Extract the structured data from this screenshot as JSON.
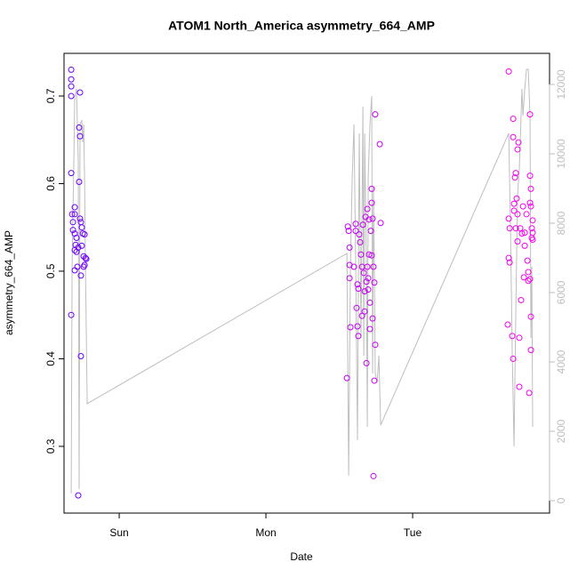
{
  "chart_data": {
    "type": "scatter",
    "title": "ATOM1 North_America asymmetry_664_AMP",
    "xlabel": "Date",
    "ylabel": "asymmetry_664_AMP",
    "xlim": [
      -0.376,
      2.933
    ],
    "ylim": [
      0.2238,
      0.7487
    ],
    "y2lim": [
      -359,
      12897
    ],
    "xticks": [
      {
        "value": 0,
        "label": "Sun"
      },
      {
        "value": 1,
        "label": "Mon"
      },
      {
        "value": 2,
        "label": "Tue"
      }
    ],
    "yticks": [
      0.3,
      0.4,
      0.5,
      0.6,
      0.7
    ],
    "y2ticks": [
      0,
      2000,
      4000,
      6000,
      8000,
      10000,
      12000
    ],
    "axis_color": "#000000",
    "y2_axis_color": "#bebebe",
    "points": {
      "colors": [
        "#6a00ff",
        "#ff00ee"
      ],
      "x": [
        -0.327,
        -0.327,
        -0.327,
        -0.327,
        -0.267,
        -0.327,
        -0.273,
        -0.267,
        -0.273,
        -0.321,
        -0.303,
        -0.303,
        -0.315,
        -0.315,
        -0.303,
        -0.291,
        -0.297,
        -0.303,
        -0.291,
        -0.279,
        -0.267,
        -0.261,
        -0.255,
        -0.248,
        -0.236,
        -0.285,
        -0.303,
        -0.261,
        -0.255,
        -0.242,
        -0.23,
        -0.224,
        -0.236,
        -0.242,
        -0.327,
        -0.261,
        -0.279,
        1.552,
        1.558,
        1.564,
        1.57,
        1.57,
        1.57,
        1.576,
        1.6,
        1.612,
        1.612,
        1.618,
        1.624,
        1.624,
        1.63,
        1.63,
        1.636,
        1.642,
        1.648,
        1.655,
        1.655,
        1.661,
        1.667,
        1.673,
        1.673,
        1.679,
        1.685,
        1.685,
        1.691,
        1.691,
        1.697,
        1.697,
        1.703,
        1.703,
        1.709,
        1.709,
        1.715,
        1.721,
        1.721,
        1.721,
        1.727,
        1.727,
        1.733,
        1.739,
        1.745,
        1.745,
        1.739,
        1.733,
        1.776,
        1.782,
        2.655,
        2.648,
        2.655,
        2.661,
        2.655,
        2.661,
        2.679,
        2.685,
        2.685,
        2.685,
        2.691,
        2.691,
        2.697,
        2.703,
        2.703,
        2.709,
        2.715,
        2.715,
        2.715,
        2.721,
        2.727,
        2.727,
        2.733,
        2.745,
        2.739,
        2.752,
        2.758,
        2.764,
        2.764,
        2.776,
        2.782,
        2.788,
        2.788,
        2.794,
        2.8,
        2.8,
        2.806,
        2.806,
        2.8,
        2.8,
        2.806,
        2.806,
        2.812,
        2.818,
        2.818,
        2.812,
        2.818
      ],
      "y": [
        0.73,
        0.719,
        0.711,
        0.7,
        0.704,
        0.612,
        0.664,
        0.654,
        0.602,
        0.565,
        0.565,
        0.573,
        0.556,
        0.547,
        0.543,
        0.538,
        0.53,
        0.524,
        0.522,
        0.527,
        0.56,
        0.556,
        0.55,
        0.543,
        0.542,
        0.505,
        0.501,
        0.495,
        0.529,
        0.517,
        0.515,
        0.514,
        0.507,
        0.505,
        0.45,
        0.403,
        0.244,
        0.378,
        0.551,
        0.546,
        0.527,
        0.507,
        0.492,
        0.436,
        0.505,
        0.554,
        0.546,
        0.458,
        0.485,
        0.437,
        0.48,
        0.426,
        0.542,
        0.533,
        0.519,
        0.505,
        0.449,
        0.553,
        0.498,
        0.477,
        0.454,
        0.562,
        0.488,
        0.395,
        0.571,
        0.505,
        0.492,
        0.479,
        0.559,
        0.519,
        0.464,
        0.434,
        0.546,
        0.594,
        0.578,
        0.518,
        0.56,
        0.446,
        0.505,
        0.487,
        0.679,
        0.416,
        0.375,
        0.266,
        0.645,
        0.555,
        0.728,
        0.439,
        0.56,
        0.549,
        0.515,
        0.51,
        0.426,
        0.674,
        0.653,
        0.4,
        0.577,
        0.569,
        0.607,
        0.612,
        0.549,
        0.583,
        0.565,
        0.534,
        0.639,
        0.647,
        0.424,
        0.368,
        0.549,
        0.543,
        0.467,
        0.574,
        0.493,
        0.544,
        0.529,
        0.565,
        0.512,
        0.499,
        0.489,
        0.361,
        0.679,
        0.609,
        0.594,
        0.574,
        0.578,
        0.491,
        0.448,
        0.41,
        0.549,
        0.558,
        0.544,
        0.538,
        0.536
      ]
    },
    "line": {
      "axis": "y2",
      "color": "#bebebe",
      "x": [
        -0.327,
        -0.321,
        -0.309,
        -0.303,
        -0.291,
        -0.279,
        -0.273,
        -0.267,
        -0.255,
        -0.248,
        -0.242,
        -0.236,
        -0.23,
        -0.218,
        1.552,
        1.564,
        1.576,
        1.588,
        1.6,
        1.612,
        1.624,
        1.636,
        1.648,
        1.661,
        1.667,
        1.673,
        1.685,
        1.691,
        1.697,
        1.709,
        1.721,
        1.727,
        1.733,
        1.739,
        1.745,
        1.758,
        1.77,
        1.782,
        2.655,
        2.667,
        2.679,
        2.691,
        2.703,
        2.715,
        2.727,
        2.739,
        2.745,
        2.752,
        2.764,
        2.776,
        2.788,
        2.8,
        2.806,
        2.812,
        2.818
      ],
      "y": [
        205,
        6744,
        9821,
        11615,
        11872,
        9821,
        333,
        10846,
        10974,
        10333,
        10846,
        9308,
        6744,
        2795,
        7128,
        718,
        6744,
        9308,
        10846,
        6744,
        1744,
        10590,
        4692,
        11359,
        4179,
        10590,
        6744,
        2128,
        9308,
        10846,
        11667,
        3667,
        9051,
        6487,
        3667,
        3410,
        4179,
        2179,
        10590,
        7769,
        4179,
        1564,
        5462,
        8795,
        9564,
        11103,
        11872,
        11103,
        11872,
        12436,
        12436,
        11103,
        4692,
        6744,
        2128
      ]
    }
  }
}
